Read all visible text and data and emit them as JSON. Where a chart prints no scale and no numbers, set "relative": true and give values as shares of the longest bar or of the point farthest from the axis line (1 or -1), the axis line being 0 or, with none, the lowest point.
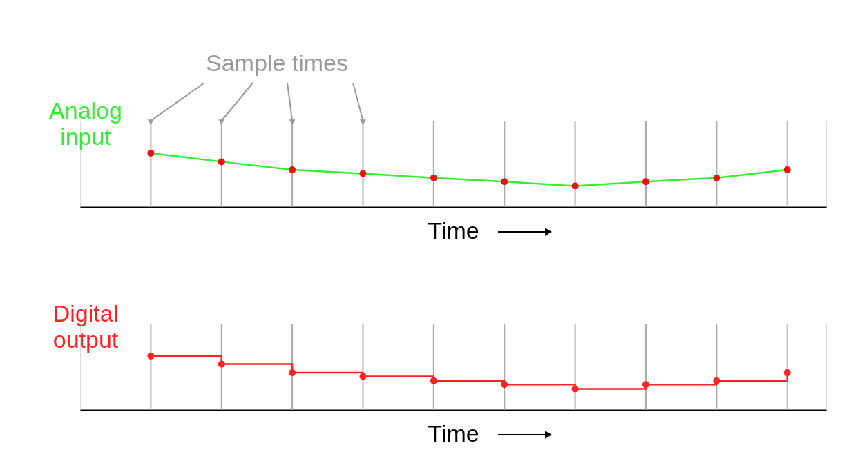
{
  "chart_data": [
    {
      "type": "line",
      "categories": [
        null,
        null,
        null,
        null,
        null,
        null,
        null,
        null,
        null,
        null
      ],
      "relative": true,
      "xlabel": "Time",
      "grid": "x",
      "legend": "left",
      "tick_labels": false,
      "marker": "circle",
      "annotations": [
        "Sample times"
      ],
      "series": [
        {
          "name": "Analog input",
          "color": "#33ee33",
          "colors": [
            "#ee1111",
            "#ee1111",
            "#ee1111",
            "#ee1111",
            "#ee1111",
            "#ee1111",
            "#ee1111",
            "#ee1111",
            "#ee1111",
            "#ee1111"
          ],
          "values": [
            1,
            0.84,
            0.69,
            0.62,
            0.54,
            0.47,
            0.39,
            0.47,
            0.54,
            0.69
          ]
        }
      ]
    },
    {
      "type": "step",
      "categories": [
        null,
        null,
        null,
        null,
        null,
        null,
        null,
        null,
        null,
        null
      ],
      "relative": true,
      "xlabel": "Time",
      "grid": "x",
      "legend": "left",
      "tick_labels": false,
      "marker": "circle",
      "series": [
        {
          "name": "Digital output",
          "color": "#ff2222",
          "values": [
            1,
            0.85,
            0.69,
            0.62,
            0.54,
            0.47,
            0.39,
            0.47,
            0.54,
            0.69
          ]
        }
      ]
    }
  ]
}
